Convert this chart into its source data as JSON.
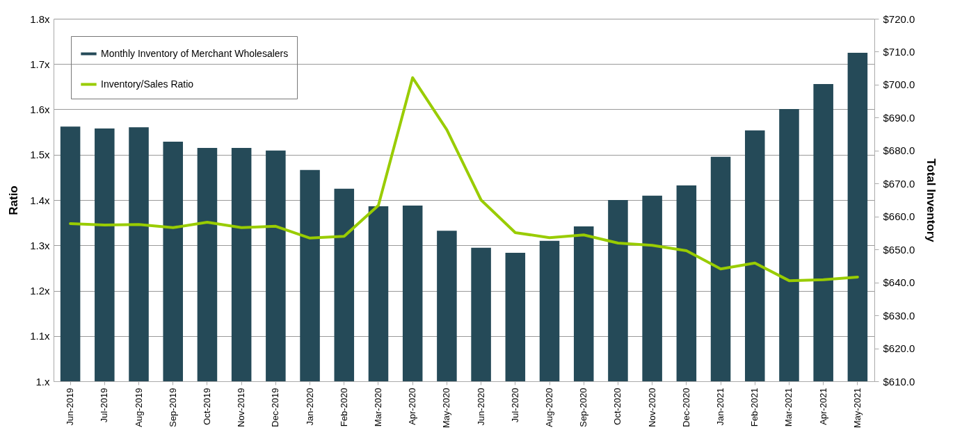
{
  "chart_data": {
    "type": "bar",
    "ylabel": "Ratio",
    "y2label": "Total Inventory",
    "categories": [
      "Jun-2019",
      "Jul-2019",
      "Aug-2019",
      "Sep-2019",
      "Oct-2019",
      "Nov-2019",
      "Dec-2019",
      "Jan-2020",
      "Feb-2020",
      "Mar-2020",
      "Apr-2020",
      "May-2020",
      "Jun-2020",
      "Jul-2020",
      "Aug-2020",
      "Sep-2020",
      "Oct-2020",
      "Nov-2020",
      "Dec-2020",
      "Jan-2021",
      "Feb-2021",
      "Mar-2021",
      "Apr-2021",
      "May-2021"
    ],
    "series": [
      {
        "name": "Monthly Inventory of Merchant Wholesalers",
        "axis": "y2",
        "color": "#254a58",
        "values": [
          687.3,
          686.7,
          687.1,
          682.7,
          680.8,
          680.8,
          680.0,
          674.1,
          668.4,
          663.1,
          663.3,
          655.7,
          650.5,
          649.0,
          652.6,
          657.0,
          665.0,
          666.3,
          669.4,
          678.1,
          686.1,
          692.6,
          700.2,
          709.7
        ]
      },
      {
        "name": "Inventory/Sales Ratio",
        "type": "line",
        "color": "#99cc00",
        "values": [
          1.348,
          1.345,
          1.346,
          1.339,
          1.351,
          1.339,
          1.342,
          1.316,
          1.32,
          1.388,
          1.67,
          1.555,
          1.4,
          1.328,
          1.317,
          1.323,
          1.305,
          1.3,
          1.288,
          1.248,
          1.261,
          1.222,
          1.224,
          1.23
        ]
      }
    ],
    "ylim": [
      1,
      1.8
    ],
    "yticks": [
      {
        "value": 1,
        "label": "1.x"
      },
      {
        "value": 1.1,
        "label": "1.1x"
      },
      {
        "value": 1.2,
        "label": "1.2x"
      },
      {
        "value": 1.3,
        "label": "1.3x"
      },
      {
        "value": 1.4,
        "label": "1.4x"
      },
      {
        "value": 1.5,
        "label": "1.5x"
      },
      {
        "value": 1.6,
        "label": "1.6x"
      },
      {
        "value": 1.7,
        "label": "1.7x"
      },
      {
        "value": 1.8,
        "label": "1.8x"
      }
    ],
    "y2lim": [
      610,
      720
    ],
    "y2ticks": [
      {
        "value": 610,
        "label": "$610.0"
      },
      {
        "value": 620,
        "label": "$620.0"
      },
      {
        "value": 630,
        "label": "$630.0"
      },
      {
        "value": 640,
        "label": "$640.0"
      },
      {
        "value": 650,
        "label": "$650.0"
      },
      {
        "value": 660,
        "label": "$660.0"
      },
      {
        "value": 670,
        "label": "$670.0"
      },
      {
        "value": 680,
        "label": "$680.0"
      },
      {
        "value": 690,
        "label": "$690.0"
      },
      {
        "value": 700,
        "label": "$700.0"
      },
      {
        "value": 710,
        "label": "$710.0"
      },
      {
        "value": 720,
        "label": "$720.0"
      }
    ],
    "grid": "y",
    "legend": "top left"
  }
}
